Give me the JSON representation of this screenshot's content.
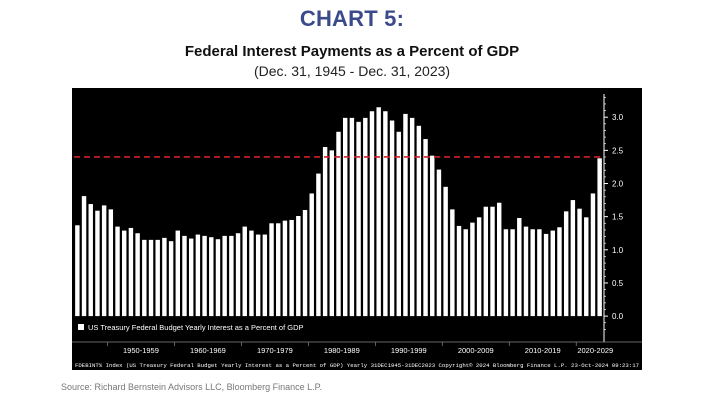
{
  "header": {
    "label": "CHART 5:",
    "title": "Federal Interest Payments as a Percent of GDP",
    "subtitle": "(Dec. 31, 1945 - Dec. 31, 2023)"
  },
  "source": "Source: Richard Bernstein Advisors LLC, Bloomberg Finance L.P.",
  "chart_data": {
    "type": "bar",
    "title": "Federal Interest Payments as a Percent of GDP",
    "legend": "US Treasury Federal Budget Yearly Interest as a Percent of GDP",
    "legend_position": "bottom-left",
    "years": [
      1945,
      1946,
      1947,
      1948,
      1949,
      1950,
      1951,
      1952,
      1953,
      1954,
      1955,
      1956,
      1957,
      1958,
      1959,
      1960,
      1961,
      1962,
      1963,
      1964,
      1965,
      1966,
      1967,
      1968,
      1969,
      1970,
      1971,
      1972,
      1973,
      1974,
      1975,
      1976,
      1977,
      1978,
      1979,
      1980,
      1981,
      1982,
      1983,
      1984,
      1985,
      1986,
      1987,
      1988,
      1989,
      1990,
      1991,
      1992,
      1993,
      1994,
      1995,
      1996,
      1997,
      1998,
      1999,
      2000,
      2001,
      2002,
      2003,
      2004,
      2005,
      2006,
      2007,
      2008,
      2009,
      2010,
      2011,
      2012,
      2013,
      2014,
      2015,
      2016,
      2017,
      2018,
      2019,
      2020,
      2021,
      2022,
      2023
    ],
    "values": [
      1.37,
      1.81,
      1.69,
      1.59,
      1.67,
      1.61,
      1.35,
      1.29,
      1.33,
      1.25,
      1.15,
      1.15,
      1.15,
      1.18,
      1.13,
      1.29,
      1.21,
      1.17,
      1.23,
      1.21,
      1.19,
      1.16,
      1.21,
      1.21,
      1.25,
      1.35,
      1.29,
      1.23,
      1.23,
      1.4,
      1.4,
      1.44,
      1.45,
      1.51,
      1.6,
      1.85,
      2.15,
      2.55,
      2.5,
      2.78,
      2.99,
      2.99,
      2.93,
      2.99,
      3.09,
      3.15,
      3.09,
      2.95,
      2.78,
      3.05,
      2.99,
      2.87,
      2.67,
      2.42,
      2.21,
      1.95,
      1.61,
      1.36,
      1.31,
      1.41,
      1.49,
      1.65,
      1.65,
      1.71,
      1.31,
      1.31,
      1.48,
      1.35,
      1.31,
      1.31,
      1.24,
      1.29,
      1.34,
      1.58,
      1.75,
      1.62,
      1.49,
      1.85,
      2.38
    ],
    "reference_line": {
      "value": 2.4,
      "style": "dashed",
      "color": "#d0202a"
    },
    "ylim": [
      -0.3,
      3.35
    ],
    "y_ticks": [
      0.0,
      0.5,
      1.0,
      1.5,
      2.0,
      2.5,
      3.0
    ],
    "y_tick_labels": [
      "0.0",
      "0.5",
      "1.0",
      "1.5",
      "2.0",
      "2.5",
      "3.0"
    ],
    "x_decades": [
      {
        "label": "1950-1959",
        "start": 1950,
        "end": 1959
      },
      {
        "label": "1960-1969",
        "start": 1960,
        "end": 1969
      },
      {
        "label": "1970-1979",
        "start": 1970,
        "end": 1979
      },
      {
        "label": "1980-1989",
        "start": 1980,
        "end": 1989
      },
      {
        "label": "1990-1999",
        "start": 1990,
        "end": 1999
      },
      {
        "label": "2000-2009",
        "start": 2000,
        "end": 2009
      },
      {
        "label": "2010-2019",
        "start": 2010,
        "end": 2019
      },
      {
        "label": "2020-2029",
        "start": 2020,
        "end": 2029
      }
    ],
    "footer_text": "FDEBINT% Index (US Treasury Federal Budget Yearly Interest as a Percent of GDP) Yearly 31DEC1945-31DEC2023 Copyright© 2024 Bloomberg Finance L.P. 23-Oct-2024 09:23:17",
    "colors": {
      "background": "#000000",
      "bars": "#ffffff",
      "text": "#ffffff"
    }
  }
}
